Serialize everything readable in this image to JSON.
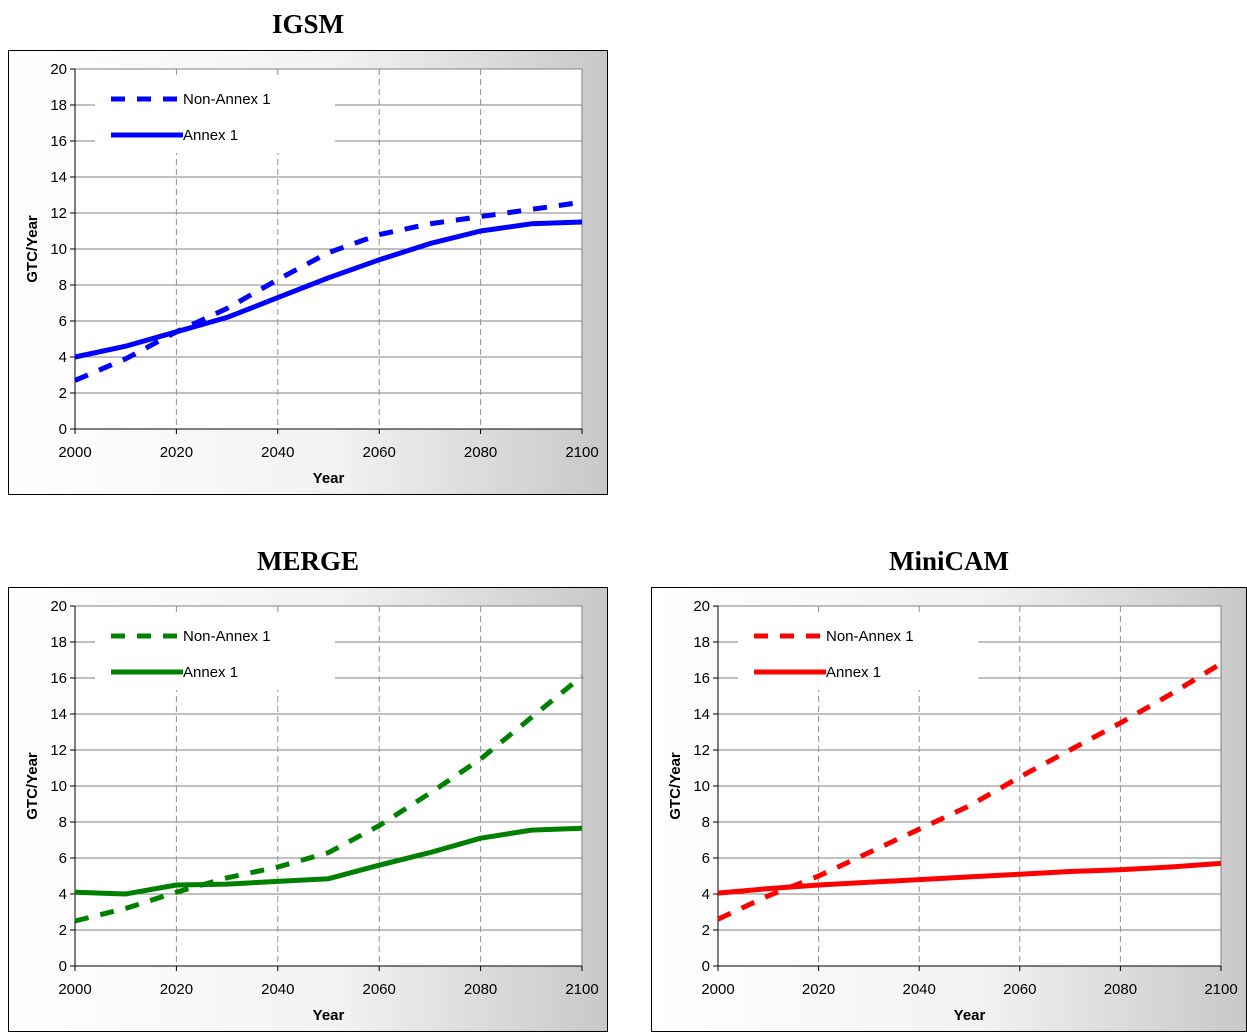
{
  "chart_data": [
    {
      "type": "line",
      "title": "IGSM",
      "xlabel": "Year",
      "ylabel": "GTC/Year",
      "xlim": [
        2000,
        2100
      ],
      "ylim": [
        0,
        20
      ],
      "xticks": [
        2000,
        2020,
        2040,
        2060,
        2080,
        2100
      ],
      "yticks": [
        0,
        2,
        4,
        6,
        8,
        10,
        12,
        14,
        16,
        18,
        20
      ],
      "legend_position": "top-left",
      "grid": "horizontal solid, vertical dashed",
      "series": [
        {
          "name": "Non-Annex 1",
          "style": "dashed",
          "color": "#0000ff",
          "x": [
            2000,
            2010,
            2020,
            2030,
            2040,
            2050,
            2060,
            2070,
            2080,
            2090,
            2100
          ],
          "y": [
            2.7,
            3.9,
            5.4,
            6.7,
            8.3,
            9.8,
            10.8,
            11.4,
            11.8,
            12.2,
            12.6
          ]
        },
        {
          "name": "Annex 1",
          "style": "solid",
          "color": "#0000ff",
          "x": [
            2000,
            2010,
            2020,
            2030,
            2040,
            2050,
            2060,
            2070,
            2080,
            2090,
            2100
          ],
          "y": [
            4.0,
            4.6,
            5.4,
            6.2,
            7.3,
            8.4,
            9.4,
            10.3,
            11.0,
            11.4,
            11.5
          ]
        }
      ]
    },
    {
      "type": "line",
      "title": "MERGE",
      "xlabel": "Year",
      "ylabel": "GTC/Year",
      "xlim": [
        2000,
        2100
      ],
      "ylim": [
        0,
        20
      ],
      "xticks": [
        2000,
        2020,
        2040,
        2060,
        2080,
        2100
      ],
      "yticks": [
        0,
        2,
        4,
        6,
        8,
        10,
        12,
        14,
        16,
        18,
        20
      ],
      "legend_position": "top-left",
      "grid": "horizontal solid, vertical dashed",
      "series": [
        {
          "name": "Non-Annex 1",
          "style": "dashed",
          "color": "#008000",
          "x": [
            2000,
            2010,
            2020,
            2030,
            2040,
            2050,
            2060,
            2070,
            2080,
            2090,
            2100
          ],
          "y": [
            2.5,
            3.2,
            4.1,
            4.9,
            5.5,
            6.3,
            7.8,
            9.6,
            11.5,
            13.8,
            16.1
          ]
        },
        {
          "name": "Annex 1",
          "style": "solid",
          "color": "#008000",
          "x": [
            2000,
            2010,
            2020,
            2030,
            2040,
            2050,
            2060,
            2070,
            2080,
            2090,
            2100
          ],
          "y": [
            4.1,
            4.0,
            4.5,
            4.55,
            4.7,
            4.85,
            5.6,
            6.3,
            7.1,
            7.55,
            7.65
          ]
        }
      ]
    },
    {
      "type": "line",
      "title": "MiniCAM",
      "xlabel": "Year",
      "ylabel": "GTC/Year",
      "xlim": [
        2000,
        2100
      ],
      "ylim": [
        0,
        20
      ],
      "xticks": [
        2000,
        2020,
        2040,
        2060,
        2080,
        2100
      ],
      "yticks": [
        0,
        2,
        4,
        6,
        8,
        10,
        12,
        14,
        16,
        18,
        20
      ],
      "legend_position": "top-left",
      "grid": "horizontal solid, vertical dashed",
      "series": [
        {
          "name": "Non-Annex 1",
          "style": "dashed",
          "color": "#ff0000",
          "x": [
            2000,
            2010,
            2020,
            2030,
            2040,
            2050,
            2060,
            2070,
            2080,
            2090,
            2100
          ],
          "y": [
            2.6,
            3.9,
            5.0,
            6.3,
            7.6,
            8.9,
            10.5,
            12.0,
            13.5,
            15.1,
            16.8
          ]
        },
        {
          "name": "Annex 1",
          "style": "solid",
          "color": "#ff0000",
          "x": [
            2000,
            2010,
            2020,
            2030,
            2040,
            2050,
            2060,
            2070,
            2080,
            2090,
            2100
          ],
          "y": [
            4.05,
            4.3,
            4.5,
            4.65,
            4.8,
            4.95,
            5.1,
            5.25,
            5.35,
            5.5,
            5.7
          ]
        }
      ]
    }
  ]
}
